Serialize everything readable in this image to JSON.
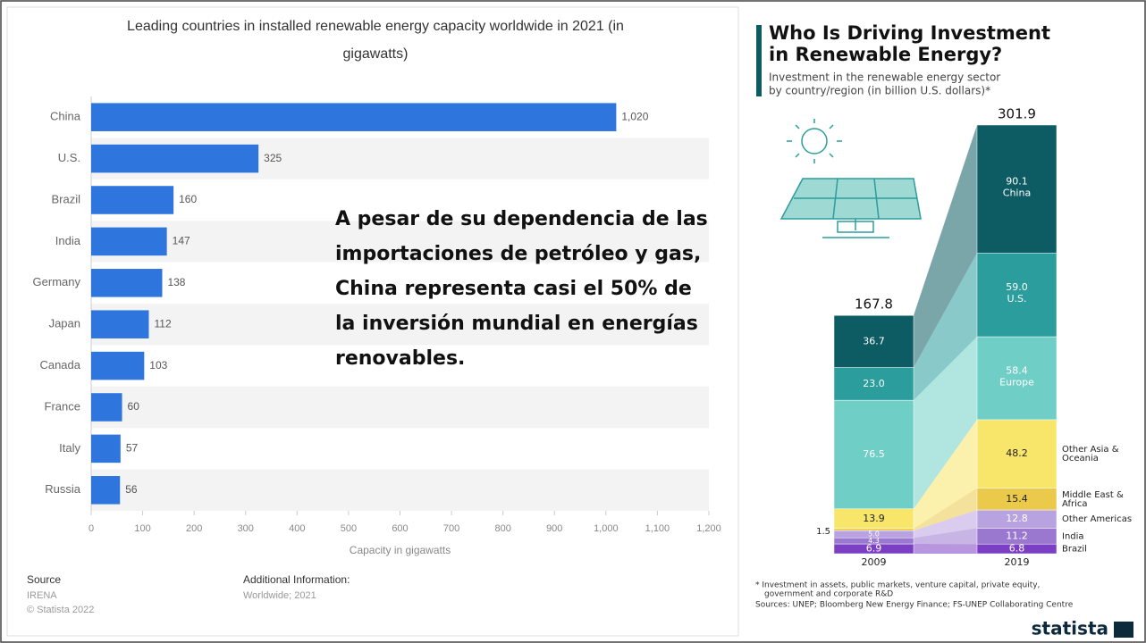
{
  "chart_data": [
    {
      "type": "bar",
      "orientation": "horizontal",
      "title": "Leading countries in installed renewable energy capacity worldwide in 2021 (in gigawatts)",
      "categories": [
        "China",
        "U.S.",
        "Brazil",
        "India",
        "Germany",
        "Japan",
        "Canada",
        "France",
        "Italy",
        "Russia"
      ],
      "values": [
        1020,
        325,
        160,
        147,
        138,
        112,
        103,
        60,
        57,
        56
      ],
      "value_labels": [
        "1,020",
        "325",
        "160",
        "147",
        "138",
        "112",
        "103",
        "60",
        "57",
        "56"
      ],
      "color": "#2f75de",
      "xlim": [
        0,
        1200
      ],
      "xticks": [
        0,
        100,
        200,
        300,
        400,
        500,
        600,
        700,
        800,
        900,
        {
          "value": 1000,
          "label": "1,000"
        },
        {
          "value": 1100,
          "label": "1,100"
        },
        {
          "value": 1200,
          "label": "1,200"
        }
      ],
      "xlabel": "Capacity in gigawatts",
      "annotation": "A pesar de su dependencia de las importaciones de petróleo y gas, China representa casi el 50% de la inversión mundial en energías renovables.",
      "source_label": "Source",
      "source": "IRENA",
      "copyright": "© Statista 2022",
      "additional_label": "Additional Information:",
      "additional": "Worldwide; 2021"
    },
    {
      "type": "bar",
      "stacked": true,
      "title": [
        "Who Is Driving Investment",
        "in Renewable Energy?"
      ],
      "subtitle": [
        "Investment in the renewable energy sector",
        "by country/region (in billion U.S. dollars)*"
      ],
      "categories": [
        "2009",
        "2019"
      ],
      "totals": [
        167.8,
        301.9
      ],
      "series": [
        {
          "name": "Brazil",
          "color": "#7b3fc4",
          "values": [
            6.9,
            6.8
          ]
        },
        {
          "name": "India",
          "color": "#9a78cf",
          "values": [
            4.3,
            11.2
          ]
        },
        {
          "name": "Other Americas",
          "color": "#b9a2e0",
          "values": [
            5.0,
            12.8
          ],
          "value_labels": [
            "5.0",
            "12.8"
          ]
        },
        {
          "name": "Middle East & Africa",
          "color": "#ebc94a",
          "values": [
            1.5,
            15.4
          ]
        },
        {
          "name": "Other Asia & Oceania",
          "color": "#f8e66a",
          "values": [
            13.9,
            48.2
          ]
        },
        {
          "name": "Europe",
          "color": "#6fcfc6",
          "values": [
            76.5,
            58.4
          ]
        },
        {
          "name": "U.S.",
          "color": "#2a9d9c",
          "values": [
            23.0,
            59.0
          ],
          "value_labels": [
            "23.0",
            "59.0"
          ]
        },
        {
          "name": "China",
          "color": "#0d5c63",
          "values": [
            36.7,
            90.1
          ]
        }
      ],
      "footnote": [
        "* Investment in assets, public markets, venture capital, private equity,",
        "government and corporate R&D"
      ],
      "sources": "Sources: UNEP; Bloomberg New Energy Finance; FS-UNEP Collaborating Centre",
      "brand": "statista"
    }
  ]
}
